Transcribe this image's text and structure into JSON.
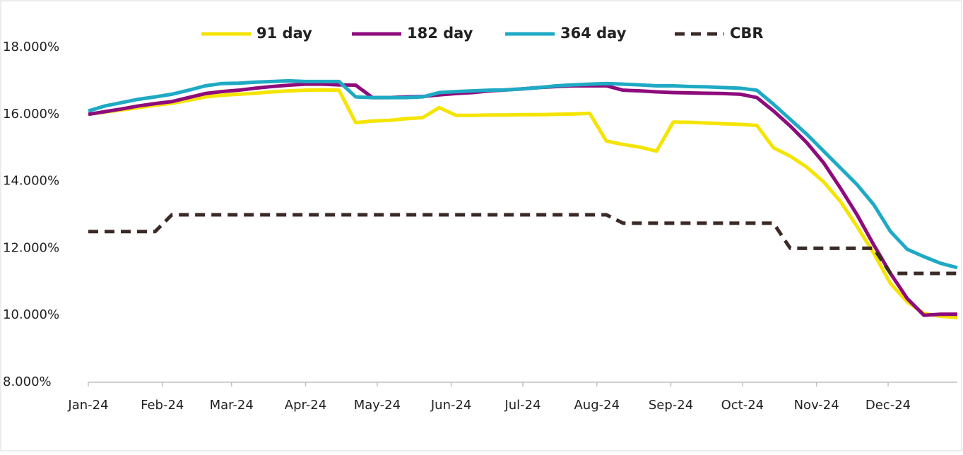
{
  "chart_data": {
    "type": "line",
    "x": [
      0,
      7,
      14,
      21,
      28,
      35,
      42,
      49,
      56,
      63,
      70,
      77,
      84,
      91,
      98,
      105,
      112,
      119,
      126,
      133,
      140,
      147,
      154,
      161,
      168,
      175,
      182,
      189,
      196,
      203,
      210,
      217,
      224,
      231,
      238,
      245,
      252,
      259,
      266,
      273,
      280,
      287,
      294,
      301,
      308,
      315,
      322,
      329,
      336,
      343,
      350,
      357,
      364
    ],
    "xlim": [
      0,
      364
    ],
    "xticks": [
      {
        "value": 0,
        "label": "Jan-24"
      },
      {
        "value": 31,
        "label": "Feb-24"
      },
      {
        "value": 60,
        "label": "Mar-24"
      },
      {
        "value": 91,
        "label": "Apr-24"
      },
      {
        "value": 121,
        "label": "May-24"
      },
      {
        "value": 152,
        "label": "Jun-24"
      },
      {
        "value": 182,
        "label": "Jul-24"
      },
      {
        "value": 213,
        "label": "Aug-24"
      },
      {
        "value": 244,
        "label": "Sep-24"
      },
      {
        "value": 274,
        "label": "Oct-24"
      },
      {
        "value": 305,
        "label": "Nov-24"
      },
      {
        "value": 335,
        "label": "Dec-24"
      }
    ],
    "ylim": [
      8,
      18
    ],
    "yticks": [
      {
        "value": 8,
        "label": "8.000%"
      },
      {
        "value": 10,
        "label": "10.000%"
      },
      {
        "value": 12,
        "label": "12.000%"
      },
      {
        "value": 14,
        "label": "14.000%"
      },
      {
        "value": 16,
        "label": "16.000%"
      },
      {
        "value": 18,
        "label": "18.000%"
      }
    ],
    "grid": false,
    "legend": "top",
    "series": [
      {
        "name": "91 day",
        "color": "#f5e400",
        "dashed": false,
        "values": [
          16.0,
          16.07,
          16.13,
          16.2,
          16.27,
          16.33,
          16.42,
          16.52,
          16.57,
          16.6,
          16.63,
          16.67,
          16.7,
          16.72,
          16.73,
          16.72,
          15.75,
          15.8,
          15.82,
          15.87,
          15.9,
          16.2,
          15.97,
          15.97,
          15.98,
          15.98,
          15.99,
          15.99,
          16.0,
          16.01,
          16.03,
          15.2,
          15.1,
          15.02,
          14.9,
          15.77,
          15.76,
          15.74,
          15.72,
          15.7,
          15.67,
          15.0,
          14.75,
          14.42,
          13.98,
          13.4,
          12.65,
          11.85,
          10.95,
          10.4,
          10.05,
          9.97,
          9.93
        ]
      },
      {
        "name": "182 day",
        "color": "#8e0b7c",
        "dashed": false,
        "values": [
          16.0,
          16.08,
          16.16,
          16.25,
          16.32,
          16.38,
          16.5,
          16.62,
          16.68,
          16.72,
          16.78,
          16.83,
          16.87,
          16.9,
          16.9,
          16.88,
          16.87,
          16.5,
          16.5,
          16.52,
          16.53,
          16.58,
          16.62,
          16.65,
          16.7,
          16.73,
          16.76,
          16.8,
          16.83,
          16.85,
          16.85,
          16.85,
          16.72,
          16.7,
          16.67,
          16.65,
          16.64,
          16.63,
          16.62,
          16.6,
          16.5,
          16.1,
          15.65,
          15.15,
          14.55,
          13.8,
          13.0,
          12.1,
          11.25,
          10.5,
          10.0,
          10.03,
          10.03
        ]
      },
      {
        "name": "364 day",
        "color": "#1eaac4",
        "dashed": false,
        "values": [
          16.1,
          16.25,
          16.35,
          16.45,
          16.52,
          16.6,
          16.72,
          16.85,
          16.92,
          16.93,
          16.96,
          16.98,
          17.0,
          16.98,
          16.98,
          16.98,
          16.52,
          16.5,
          16.5,
          16.5,
          16.52,
          16.65,
          16.68,
          16.7,
          16.72,
          16.73,
          16.76,
          16.8,
          16.85,
          16.88,
          16.9,
          16.92,
          16.9,
          16.88,
          16.85,
          16.85,
          16.83,
          16.82,
          16.8,
          16.78,
          16.72,
          16.3,
          15.85,
          15.4,
          14.9,
          14.4,
          13.9,
          13.3,
          12.5,
          11.97,
          11.75,
          11.55,
          11.42
        ]
      },
      {
        "name": "CBR",
        "color": "#3b2a25",
        "dashed": true,
        "values": [
          12.5,
          12.5,
          12.5,
          12.5,
          12.5,
          13,
          13,
          13,
          13,
          13,
          13,
          13,
          13,
          13,
          13,
          13,
          13,
          13,
          13,
          13,
          13,
          13,
          13,
          13,
          13,
          13,
          13,
          13,
          13,
          13,
          13,
          13,
          12.75,
          12.75,
          12.75,
          12.75,
          12.75,
          12.75,
          12.75,
          12.75,
          12.75,
          12.75,
          12,
          12,
          12,
          12,
          12,
          12,
          11.25,
          11.25,
          11.25,
          11.25,
          11.25
        ]
      }
    ]
  }
}
